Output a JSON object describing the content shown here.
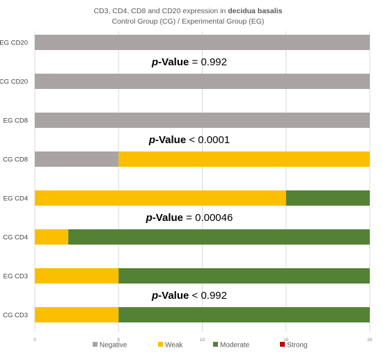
{
  "chart_data": {
    "type": "bar",
    "orientation": "horizontal",
    "stacked": true,
    "title_line1_prefix": "CD3, CD4, CD8 and CD20 expression in ",
    "title_line1_emphasis": "decidua basalis",
    "title_line2": "Control Group (CG) / Experimental Group (EG)",
    "categories": [
      "EG CD20",
      "CG CD20",
      "EG CD8",
      "CG CD8",
      "EG CD4",
      "CG CD4",
      "EG CD3",
      "CG CD3"
    ],
    "series": [
      {
        "name": "Negative",
        "color": "#a9a3a3",
        "values": [
          20,
          20,
          20,
          5,
          0,
          0,
          0,
          0
        ]
      },
      {
        "name": "Weak",
        "color": "#fcbf00",
        "values": [
          0,
          0,
          0,
          15,
          15,
          2,
          5,
          5
        ]
      },
      {
        "name": "Moderate",
        "color": "#548235",
        "values": [
          0,
          0,
          0,
          0,
          5,
          18,
          15,
          15
        ]
      },
      {
        "name": "Strong",
        "color": "#c00000",
        "values": [
          0,
          0,
          0,
          0,
          0,
          0,
          0,
          0
        ]
      }
    ],
    "xlim": [
      0,
      20
    ],
    "xticks": [
      "0",
      "5",
      "10",
      "15",
      "20"
    ],
    "grid": true,
    "legend_position": "bottom",
    "annotations": [
      {
        "label": "p",
        "label_rest": "-Value",
        "op": "=",
        "value": "0.992",
        "between": [
          "EG CD20",
          "CG CD20"
        ]
      },
      {
        "label": "p",
        "label_rest": "-Value",
        "op": "<",
        "value": "0.0001",
        "between": [
          "EG CD8",
          "CG CD8"
        ]
      },
      {
        "label": "p",
        "label_rest": "-Value",
        "op": "=",
        "value": "0.00046",
        "between": [
          "EG CD4",
          "CG CD4"
        ]
      },
      {
        "label": "p",
        "label_rest": "-Value",
        "op": "<",
        "value": "0.992",
        "between": [
          "EG CD3",
          "CG CD3"
        ]
      }
    ]
  }
}
